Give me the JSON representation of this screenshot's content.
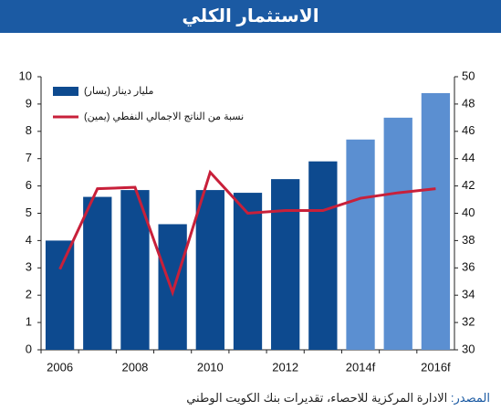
{
  "chart_data": {
    "type": "bar-line",
    "title": "الاستثمار الكلي",
    "source_label": "المصدر:",
    "source": "الادارة المركزية للاحصاء، تقديرات بنك الكويت الوطني",
    "categories": [
      "2006",
      null,
      "2008",
      null,
      "2010",
      null,
      "2012",
      null,
      "2014f",
      null,
      "2016f"
    ],
    "series": [
      {
        "name": "مليار دينار (يسار)",
        "type": "bar",
        "color": "#0d4a8f",
        "colors": [
          "#0d4a8f",
          "#0d4a8f",
          "#0d4a8f",
          "#0d4a8f",
          "#0d4a8f",
          "#0d4a8f",
          "#0d4a8f",
          "#0d4a8f",
          "#5b8fd1",
          "#5b8fd1",
          "#5b8fd1"
        ],
        "values": [
          4.0,
          5.6,
          5.85,
          4.6,
          5.85,
          5.75,
          6.25,
          6.9,
          7.7,
          8.5,
          9.4
        ]
      },
      {
        "name": "نسبة من الناتج الاجمالي النفطي (يمين)",
        "type": "line",
        "axis": "y2",
        "color": "#c8203a",
        "values": [
          35.9,
          41.8,
          41.9,
          34.2,
          43.0,
          40.0,
          40.2,
          40.2,
          41.1,
          41.5,
          41.8
        ]
      }
    ],
    "ylim": [
      0,
      10
    ],
    "yticks": [
      0,
      1,
      2,
      3,
      4,
      5,
      6,
      7,
      8,
      9,
      10
    ],
    "y2lim": [
      30,
      50
    ],
    "y2ticks": [
      30,
      32,
      34,
      36,
      38,
      40,
      42,
      44,
      46,
      48,
      50
    ],
    "grid": false,
    "legend": "top-left"
  }
}
